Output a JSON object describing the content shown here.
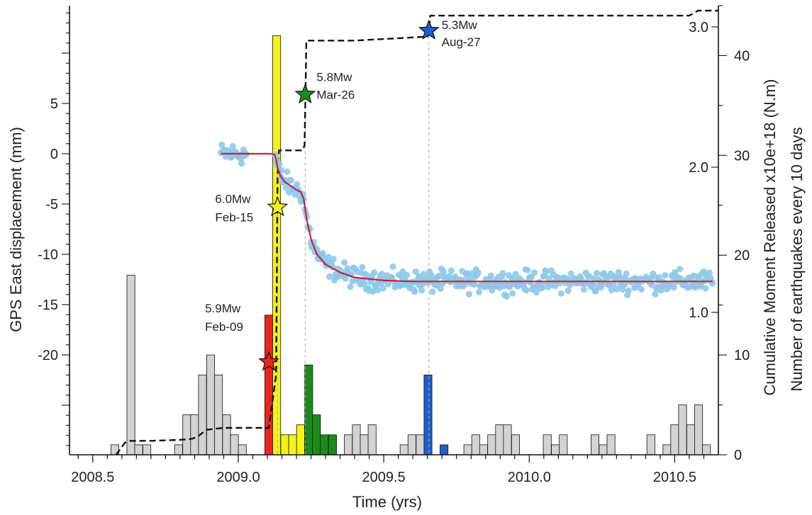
{
  "chart_data": {
    "type": "combined",
    "xlabel": "Time (yrs)",
    "ylabel_left": "GPS East displacement (mm)",
    "ylabel_right_outer": "Cumulative Moment Released  x10e+18 (N.m)",
    "ylabel_right_inner": "Number of earthquakes every 10 days",
    "xlim": [
      2008.42,
      2010.65
    ],
    "x_ticks": [
      2008.5,
      2009.0,
      2009.5,
      2010.0,
      2010.5
    ],
    "x_tick_labels": [
      "2008.5",
      "2009.0",
      "2009.5",
      "2010.0",
      "2010.5"
    ],
    "gps_ylim": [
      -30,
      15
    ],
    "gps_ticks": [
      5,
      0,
      -5,
      -10,
      -15,
      -20
    ],
    "gps_tick_labels": [
      "5",
      "0",
      "-5",
      "-10",
      "-15",
      "-20"
    ],
    "count_ylim": [
      0,
      45
    ],
    "count_ticks": [
      0,
      10,
      20,
      30,
      40
    ],
    "count_tick_labels": [
      "0",
      "10",
      "20",
      "30",
      "40"
    ],
    "moment_ticks": [
      1.0,
      2.0,
      3.0
    ],
    "moment_tick_labels": [
      "1.0",
      "2.0",
      "3.0"
    ],
    "colors": {
      "gray": "#d3d3d3",
      "red": "#e8271e",
      "yellow": "#f4f21c",
      "green": "#1d8a1d",
      "blue": "#1f60c8",
      "gps_points": "#8ec9ea",
      "fit_line": "#c4233f",
      "moment_line": "#111111"
    },
    "histogram": {
      "bin_width": 0.0274,
      "bins": [
        {
          "x": 2008.576,
          "count": 1,
          "color": "gray"
        },
        {
          "x": 2008.631,
          "count": 18,
          "color": "gray"
        },
        {
          "x": 2008.658,
          "count": 1,
          "color": "gray"
        },
        {
          "x": 2008.686,
          "count": 1,
          "color": "gray"
        },
        {
          "x": 2008.795,
          "count": 1,
          "color": "gray"
        },
        {
          "x": 2008.823,
          "count": 4,
          "color": "gray"
        },
        {
          "x": 2008.85,
          "count": 4,
          "color": "gray"
        },
        {
          "x": 2008.877,
          "count": 8,
          "color": "gray"
        },
        {
          "x": 2008.905,
          "count": 10,
          "color": "gray"
        },
        {
          "x": 2008.932,
          "count": 8,
          "color": "gray"
        },
        {
          "x": 2008.96,
          "count": 4,
          "color": "gray"
        },
        {
          "x": 2008.987,
          "count": 2,
          "color": "gray"
        },
        {
          "x": 2009.014,
          "count": 1,
          "color": "gray"
        },
        {
          "x": 2009.105,
          "count": 14,
          "color": "red"
        },
        {
          "x": 2009.132,
          "count": 42,
          "color": "yellow"
        },
        {
          "x": 2009.16,
          "count": 2,
          "color": "yellow"
        },
        {
          "x": 2009.187,
          "count": 2,
          "color": "yellow"
        },
        {
          "x": 2009.214,
          "count": 3,
          "color": "yellow"
        },
        {
          "x": 2009.242,
          "count": 9,
          "color": "green"
        },
        {
          "x": 2009.269,
          "count": 4,
          "color": "green"
        },
        {
          "x": 2009.296,
          "count": 2,
          "color": "green"
        },
        {
          "x": 2009.324,
          "count": 2,
          "color": "green"
        },
        {
          "x": 2009.378,
          "count": 2,
          "color": "gray"
        },
        {
          "x": 2009.406,
          "count": 3,
          "color": "gray"
        },
        {
          "x": 2009.433,
          "count": 2,
          "color": "gray"
        },
        {
          "x": 2009.46,
          "count": 3,
          "color": "gray"
        },
        {
          "x": 2009.57,
          "count": 1,
          "color": "gray"
        },
        {
          "x": 2009.597,
          "count": 2,
          "color": "gray"
        },
        {
          "x": 2009.625,
          "count": 2,
          "color": "gray"
        },
        {
          "x": 2009.652,
          "count": 8,
          "color": "blue"
        },
        {
          "x": 2009.707,
          "count": 1,
          "color": "blue"
        },
        {
          "x": 2009.789,
          "count": 1,
          "color": "gray"
        },
        {
          "x": 2009.816,
          "count": 2,
          "color": "gray"
        },
        {
          "x": 2009.843,
          "count": 1,
          "color": "gray"
        },
        {
          "x": 2009.871,
          "count": 2,
          "color": "gray"
        },
        {
          "x": 2009.898,
          "count": 3,
          "color": "gray"
        },
        {
          "x": 2009.925,
          "count": 3,
          "color": "gray"
        },
        {
          "x": 2009.953,
          "count": 2,
          "color": "gray"
        },
        {
          "x": 2010.062,
          "count": 2,
          "color": "gray"
        },
        {
          "x": 2010.09,
          "count": 1,
          "color": "gray"
        },
        {
          "x": 2010.117,
          "count": 2,
          "color": "gray"
        },
        {
          "x": 2010.226,
          "count": 2,
          "color": "gray"
        },
        {
          "x": 2010.254,
          "count": 1,
          "color": "gray"
        },
        {
          "x": 2010.281,
          "count": 2,
          "color": "gray"
        },
        {
          "x": 2010.418,
          "count": 2,
          "color": "gray"
        },
        {
          "x": 2010.473,
          "count": 1,
          "color": "gray"
        },
        {
          "x": 2010.5,
          "count": 3,
          "color": "gray"
        },
        {
          "x": 2010.527,
          "count": 5,
          "color": "gray"
        },
        {
          "x": 2010.555,
          "count": 3,
          "color": "gray"
        },
        {
          "x": 2010.582,
          "count": 5,
          "color": "gray"
        },
        {
          "x": 2010.609,
          "count": 1,
          "color": "gray"
        }
      ]
    },
    "moment_line": {
      "x": [
        2008.58,
        2008.61,
        2008.63,
        2008.7,
        2008.8,
        2008.84,
        2008.86,
        2008.89,
        2008.95,
        2009.0,
        2009.1,
        2009.105,
        2009.13,
        2009.135,
        2009.14,
        2009.16,
        2009.22,
        2009.228,
        2009.234,
        2009.3,
        2009.4,
        2009.65,
        2009.655,
        2009.66,
        2009.9,
        2010.2,
        2010.55,
        2010.58,
        2010.65
      ],
      "count_units": [
        0.0,
        1.2,
        1.4,
        1.4,
        1.5,
        1.6,
        1.8,
        2.5,
        2.7,
        2.7,
        2.7,
        2.7,
        8.0,
        28.0,
        30.5,
        30.5,
        30.5,
        31.0,
        41.5,
        41.5,
        41.5,
        41.9,
        42.3,
        44.0,
        44.0,
        44.0,
        44.0,
        44.5,
        44.5
      ]
    },
    "gps_fit": {
      "x": [
        2008.94,
        2009.0,
        2009.05,
        2009.11,
        2009.125,
        2009.13,
        2009.135,
        2009.145,
        2009.16,
        2009.18,
        2009.2,
        2009.215,
        2009.225,
        2009.235,
        2009.25,
        2009.27,
        2009.3,
        2009.35,
        2009.4,
        2009.5,
        2009.6,
        2009.8,
        2010.0,
        2010.3,
        2010.63
      ],
      "y": [
        0.0,
        0.0,
        0.0,
        0.0,
        -0.1,
        -0.6,
        -1.4,
        -2.2,
        -2.8,
        -3.2,
        -3.6,
        -3.8,
        -4.5,
        -6.5,
        -8.5,
        -10.0,
        -11.0,
        -11.8,
        -12.3,
        -12.6,
        -12.7,
        -12.7,
        -12.7,
        -12.7,
        -12.7
      ]
    },
    "gps_points_note_range": {
      "x": [
        2008.94,
        2010.63
      ]
    },
    "events": [
      {
        "label": "5.9Mw",
        "date": "Feb-09",
        "x": 2009.105,
        "count_units": 9.3,
        "color": "red"
      },
      {
        "label": "6.0Mw",
        "date": "Feb-15",
        "x": 2009.135,
        "count_units": 24.8,
        "color": "yellow"
      },
      {
        "label": "5.8Mw",
        "date": "Mar-26",
        "x": 2009.23,
        "count_units": 36.1,
        "color": "green"
      },
      {
        "label": "5.3Mw",
        "date": "Aug-27",
        "x": 2009.655,
        "count_units": 42.5,
        "color": "blue"
      }
    ]
  }
}
